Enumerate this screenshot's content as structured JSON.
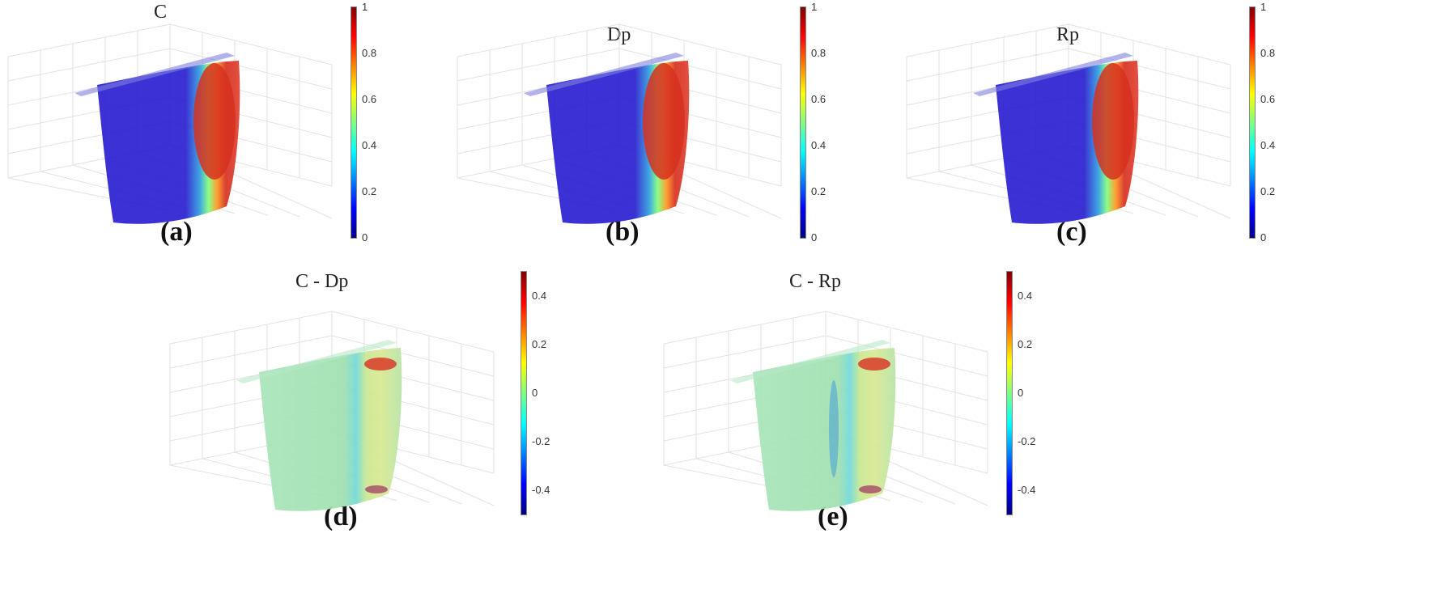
{
  "panels": [
    {
      "id": "a",
      "title": "C",
      "label": "(a)",
      "colorbar_ticks": [
        "1",
        "0.8",
        "0.6",
        "0.4",
        "0.2",
        "0"
      ],
      "map": "jet",
      "pattern": "hot"
    },
    {
      "id": "b",
      "title": "Dp",
      "label": "(b)",
      "colorbar_ticks": [
        "1",
        "0.8",
        "0.6",
        "0.4",
        "0.2",
        "0"
      ],
      "map": "jet",
      "pattern": "hot"
    },
    {
      "id": "c",
      "title": "Rp",
      "label": "(c)",
      "colorbar_ticks": [
        "1",
        "0.8",
        "0.6",
        "0.4",
        "0.2",
        "0"
      ],
      "map": "jet",
      "pattern": "hot"
    },
    {
      "id": "d",
      "title": "C - Dp",
      "label": "(d)",
      "colorbar_ticks": [
        "0.4",
        "0.2",
        "0",
        "-0.2",
        "-0.4"
      ],
      "map": "jet",
      "pattern": "diff"
    },
    {
      "id": "e",
      "title": "C - Rp",
      "label": "(e)",
      "colorbar_ticks": [
        "0.4",
        "0.2",
        "0",
        "-0.2",
        "-0.4"
      ],
      "map": "jet",
      "pattern": "diff"
    }
  ],
  "colors": {
    "jet": [
      "#00007f",
      "#0000ff",
      "#0080ff",
      "#00ffff",
      "#80ff80",
      "#ffff00",
      "#ff8000",
      "#ff0000",
      "#7f0000"
    ],
    "hot_region": "#d7301f",
    "body_low": "#2a1fd0",
    "diff_body": "#9fe0b0"
  }
}
